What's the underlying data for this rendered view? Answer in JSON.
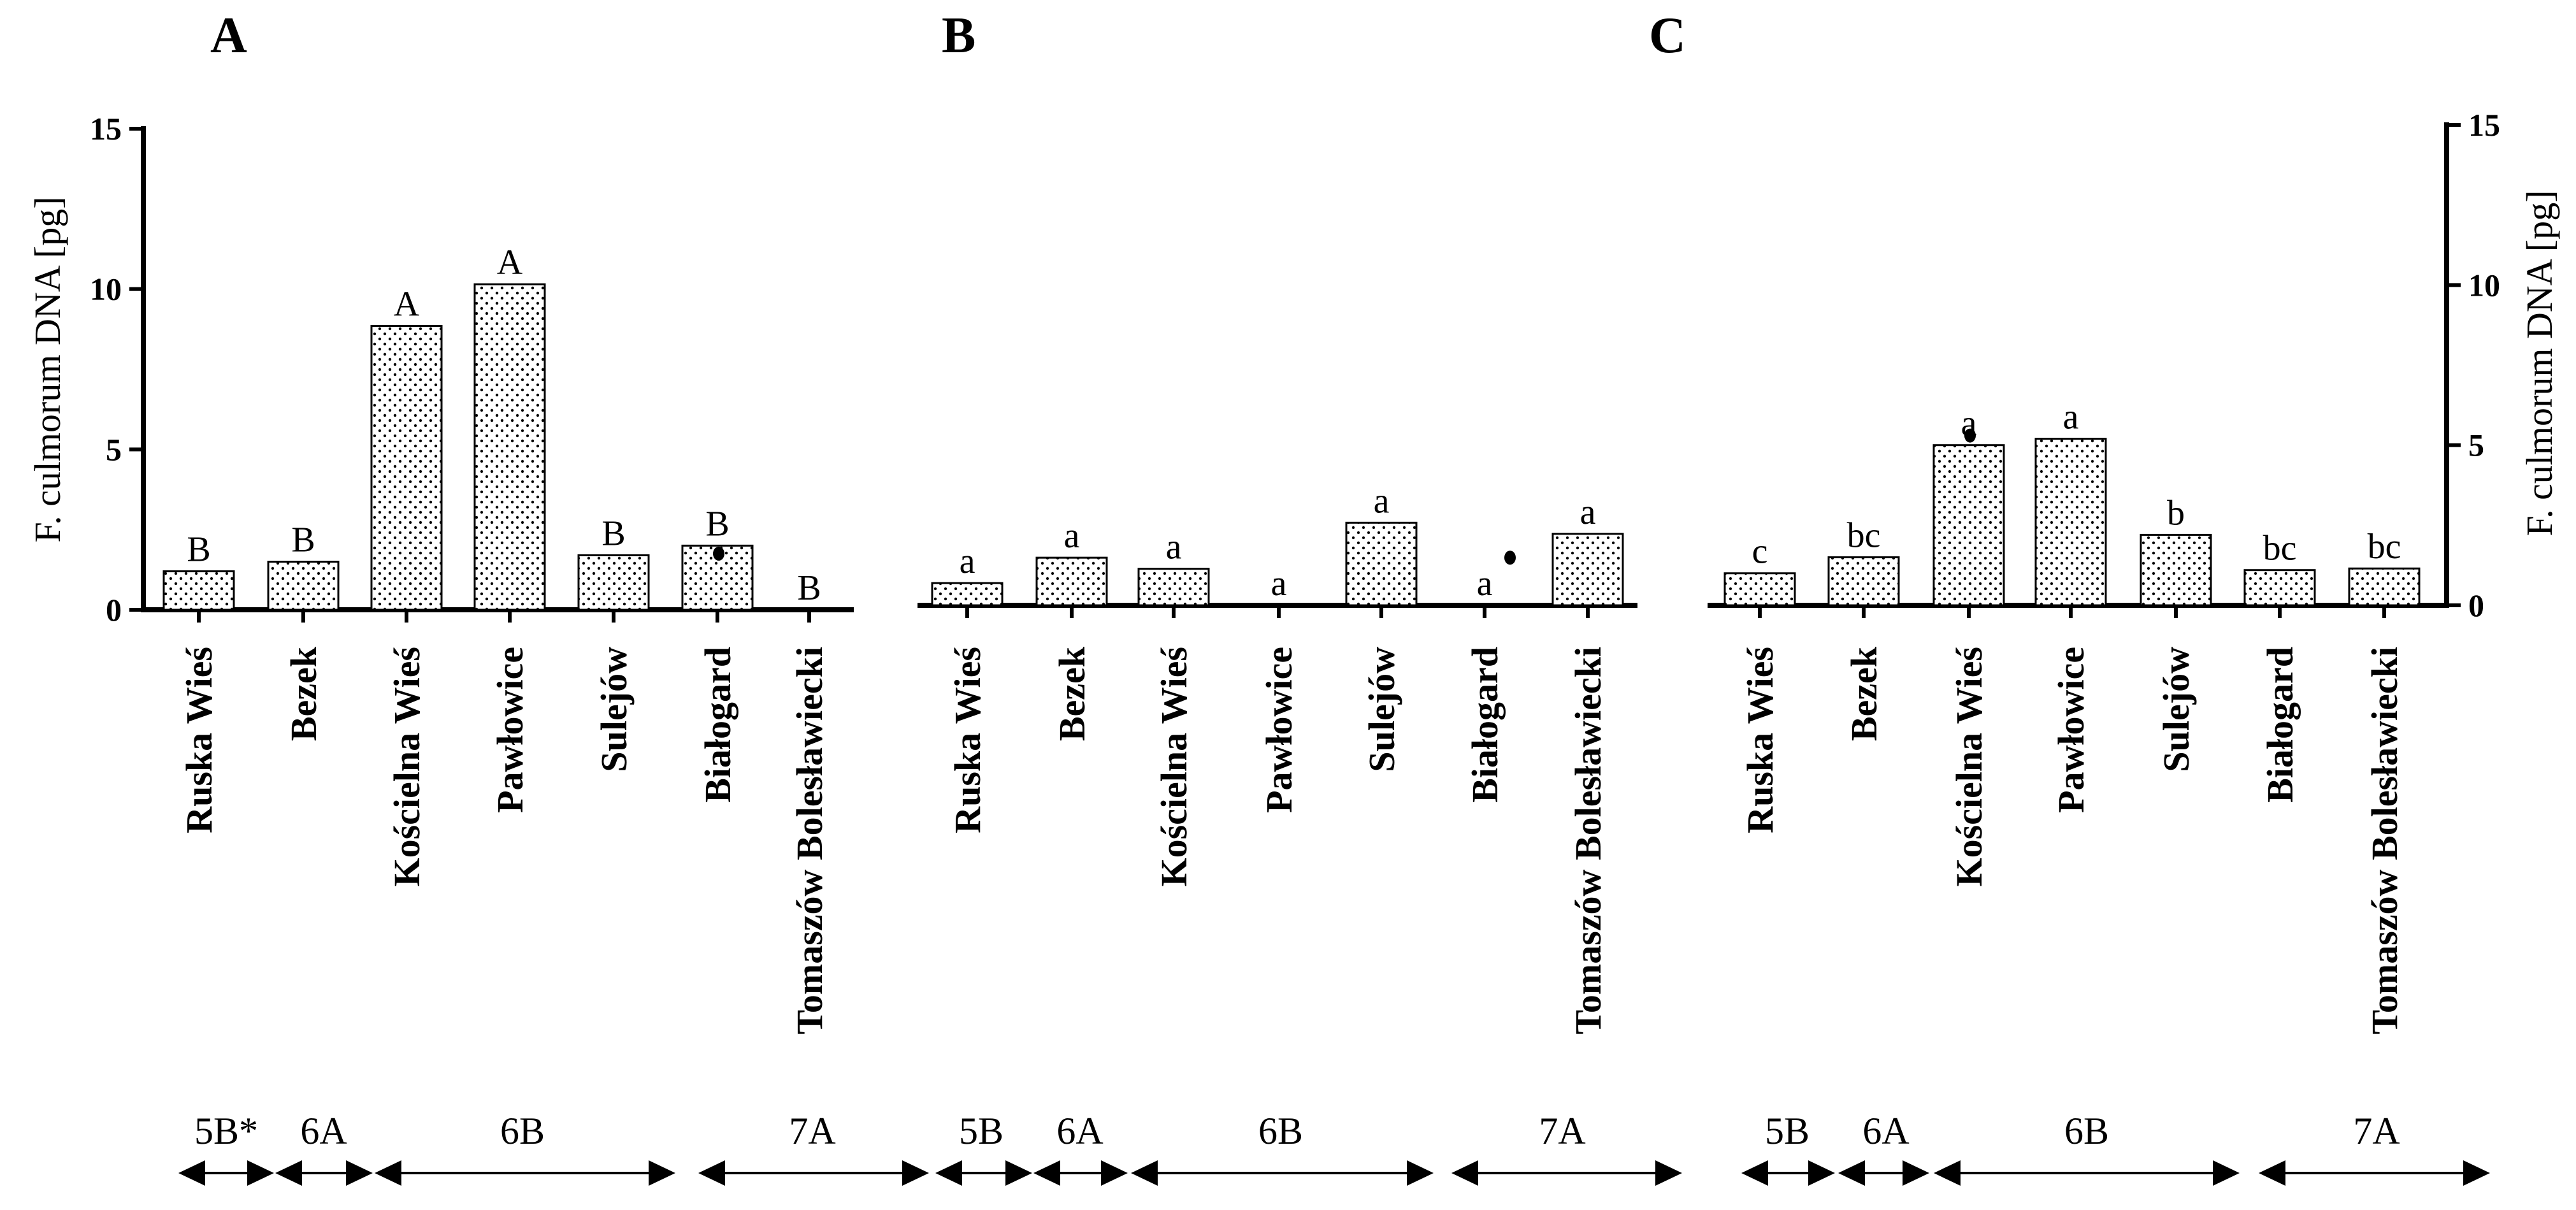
{
  "chart_data": [
    {
      "type": "bar",
      "panel": "A",
      "title": "A",
      "ylabel": "F. culmorum DNA [pg]",
      "ylim": [
        0,
        15
      ],
      "yticks": [
        0,
        5,
        10,
        15
      ],
      "categories": [
        "Ruska Wieś",
        "Bezek",
        "Kościelna Wieś",
        "Pawłowice",
        "Sulejów",
        "Białogard",
        "Tomaszów Bolesławiecki"
      ],
      "values": [
        1.2,
        1.5,
        8.85,
        10.15,
        1.7,
        2.0,
        0.0
      ],
      "letters": [
        "B",
        "B",
        "A",
        "A",
        "B",
        "B",
        "B"
      ],
      "outliers": [
        {
          "category": "Białogard",
          "value": 1.75
        }
      ],
      "groups": [
        {
          "label": "5B*",
          "categories": [
            "Ruska Wieś"
          ]
        },
        {
          "label": "6A",
          "categories": [
            "Bezek"
          ]
        },
        {
          "label": "6B",
          "categories": [
            "Kościelna Wieś",
            "Pawłowice",
            "Sulejów"
          ]
        },
        {
          "label": "7A",
          "categories": [
            "Białogard",
            "Tomaszów Bolesławiecki"
          ]
        }
      ]
    },
    {
      "type": "bar",
      "panel": "B",
      "title": "B",
      "ylabel": "",
      "ylim": [
        0,
        15
      ],
      "yticks": [],
      "categories": [
        "Ruska Wieś",
        "Bezek",
        "Kościelna Wieś",
        "Pawłowice",
        "Sulejów",
        "Białogard",
        "Tomaszów Bolesławiecki"
      ],
      "values": [
        0.7,
        1.5,
        1.15,
        0.0,
        2.6,
        0.0,
        2.25
      ],
      "letters": [
        "a",
        "a",
        "a",
        "a",
        "a",
        "a",
        "a"
      ],
      "outliers": [
        {
          "category": "Białogard",
          "value": 1.5
        }
      ],
      "groups": [
        {
          "label": "5B",
          "categories": [
            "Ruska Wieś"
          ]
        },
        {
          "label": "6A",
          "categories": [
            "Bezek"
          ]
        },
        {
          "label": "6B",
          "categories": [
            "Kościelna Wieś",
            "Pawłowice",
            "Sulejów"
          ]
        },
        {
          "label": "7A",
          "categories": [
            "Białogard",
            "Tomaszów Bolesławiecki"
          ]
        }
      ]
    },
    {
      "type": "bar",
      "panel": "C",
      "title": "C",
      "ylabel": "F. culmorum DNA [pg]",
      "ylim": [
        0,
        15
      ],
      "yticks": [
        0,
        5,
        10,
        15
      ],
      "categories": [
        "Ruska Wieś",
        "Bezek",
        "Kościelna Wieś",
        "Pawłowice",
        "Sulejów",
        "Białogard",
        "Tomaszów Bolesławiecki"
      ],
      "values": [
        1.0,
        1.5,
        5.0,
        5.2,
        2.2,
        1.1,
        1.15
      ],
      "letters": [
        "c",
        "bc",
        "a",
        "a",
        "b",
        "bc",
        "bc"
      ],
      "outliers": [
        {
          "category": "Kościelna Wieś",
          "value": 5.3
        }
      ],
      "groups": [
        {
          "label": "5B",
          "categories": [
            "Ruska Wieś"
          ]
        },
        {
          "label": "6A",
          "categories": [
            "Bezek"
          ]
        },
        {
          "label": "6B",
          "categories": [
            "Kościelna Wieś",
            "Pawłowice",
            "Sulejów"
          ]
        },
        {
          "label": "7A",
          "categories": [
            "Białogard",
            "Tomaszów Bolesławiecki"
          ]
        }
      ]
    }
  ]
}
